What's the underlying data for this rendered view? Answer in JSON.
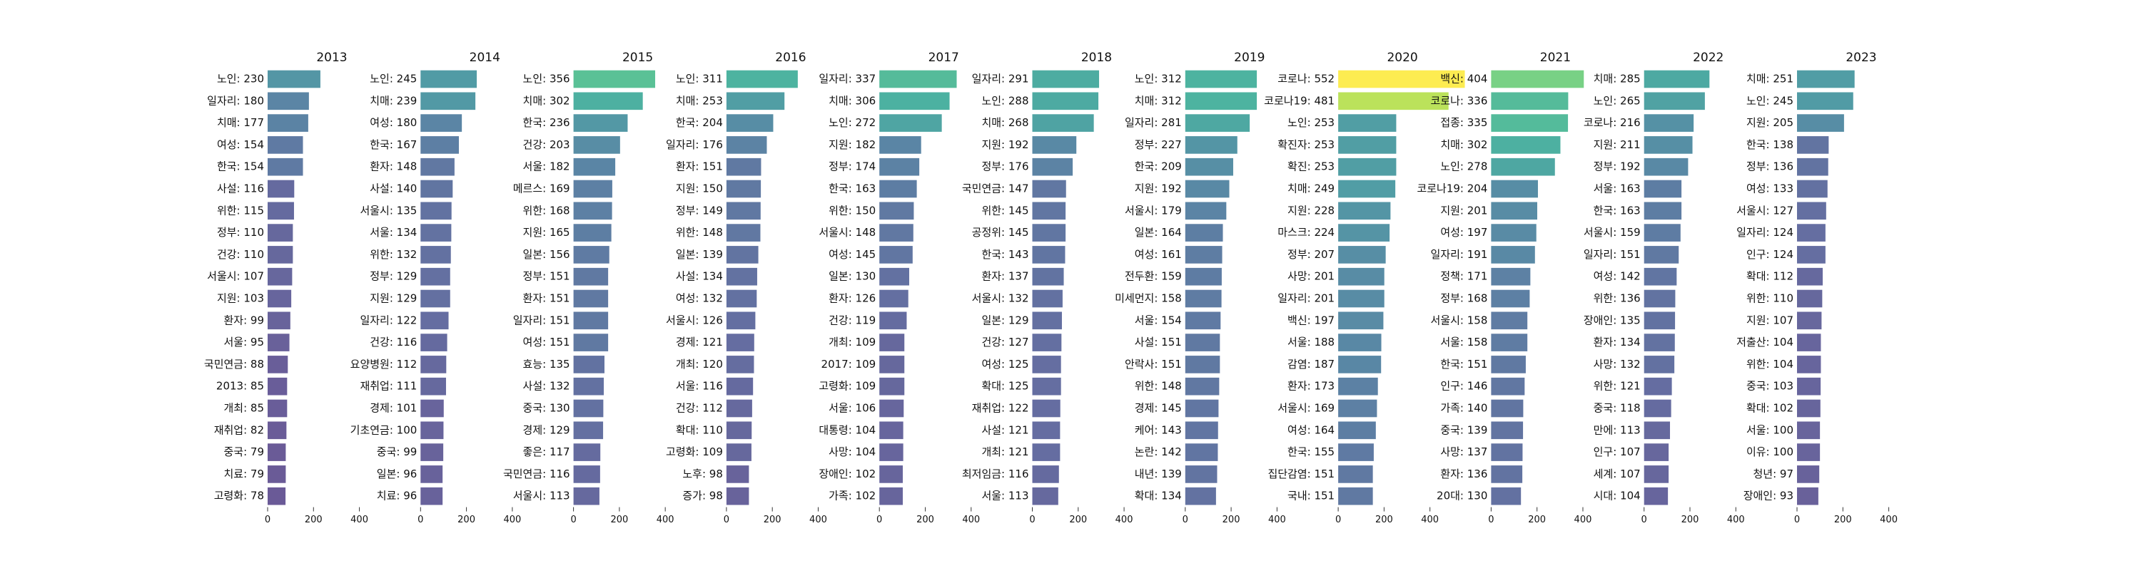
{
  "chart_data": [
    {
      "type": "bar",
      "horizontal": true,
      "title": "2013",
      "colormap": "viridis",
      "xlim": [
        0,
        560
      ],
      "xticks": [
        0,
        200,
        400
      ],
      "categories": [
        "노인: 230",
        "일자리: 180",
        "치매: 177",
        "여성: 154",
        "한국: 154",
        "사설: 116",
        "위한: 115",
        "정부: 110",
        "건강: 110",
        "서울시: 107",
        "지원: 103",
        "환자: 99",
        "서울: 95",
        "국민연금: 88",
        "2013: 85",
        "개최: 85",
        "재취업: 82",
        "중국: 79",
        "치료: 79",
        "고령화: 78"
      ],
      "values": [
        230,
        180,
        177,
        154,
        154,
        116,
        115,
        110,
        110,
        107,
        103,
        99,
        95,
        88,
        85,
        85,
        82,
        79,
        79,
        78
      ]
    },
    {
      "type": "bar",
      "horizontal": true,
      "title": "2014",
      "colormap": "viridis",
      "xlim": [
        0,
        560
      ],
      "xticks": [
        0,
        200,
        400
      ],
      "categories": [
        "노인: 245",
        "치매: 239",
        "여성: 180",
        "한국: 167",
        "환자: 148",
        "사설: 140",
        "서울시: 135",
        "서울: 134",
        "위한: 132",
        "정부: 129",
        "지원: 129",
        "일자리: 122",
        "건강: 116",
        "요양병원: 112",
        "재취업: 111",
        "경제: 101",
        "기초연금: 100",
        "중국: 99",
        "일본: 96",
        "치료: 96"
      ],
      "values": [
        245,
        239,
        180,
        167,
        148,
        140,
        135,
        134,
        132,
        129,
        129,
        122,
        116,
        112,
        111,
        101,
        100,
        99,
        96,
        96
      ]
    },
    {
      "type": "bar",
      "horizontal": true,
      "title": "2015",
      "colormap": "viridis",
      "xlim": [
        0,
        560
      ],
      "xticks": [
        0,
        200,
        400
      ],
      "categories": [
        "노인: 356",
        "치매: 302",
        "한국: 236",
        "건강: 203",
        "서울: 182",
        "메르스: 169",
        "위한: 168",
        "지원: 165",
        "일본: 156",
        "정부: 151",
        "환자: 151",
        "일자리: 151",
        "여성: 151",
        "효능: 135",
        "사설: 132",
        "중국: 130",
        "경제: 129",
        "좋은: 117",
        "국민연금: 116",
        "서울시: 113"
      ],
      "values": [
        356,
        302,
        236,
        203,
        182,
        169,
        168,
        165,
        156,
        151,
        151,
        151,
        151,
        135,
        132,
        130,
        129,
        117,
        116,
        113
      ]
    },
    {
      "type": "bar",
      "horizontal": true,
      "title": "2016",
      "colormap": "viridis",
      "xlim": [
        0,
        560
      ],
      "xticks": [
        0,
        200,
        400
      ],
      "categories": [
        "노인: 311",
        "치매: 253",
        "한국: 204",
        "일자리: 176",
        "환자: 151",
        "지원: 150",
        "정부: 149",
        "위한: 148",
        "일본: 139",
        "사설: 134",
        "여성: 132",
        "서울시: 126",
        "경제: 121",
        "개최: 120",
        "서울: 116",
        "건강: 112",
        "확대: 110",
        "고령화: 109",
        "노후: 98",
        "증가: 98"
      ],
      "values": [
        311,
        253,
        204,
        176,
        151,
        150,
        149,
        148,
        139,
        134,
        132,
        126,
        121,
        120,
        116,
        112,
        110,
        109,
        98,
        98
      ]
    },
    {
      "type": "bar",
      "horizontal": true,
      "title": "2017",
      "colormap": "viridis",
      "xlim": [
        0,
        560
      ],
      "xticks": [
        0,
        200,
        400
      ],
      "categories": [
        "일자리: 337",
        "치매: 306",
        "노인: 272",
        "지원: 182",
        "정부: 174",
        "한국: 163",
        "위한: 150",
        "서울시: 148",
        "여성: 145",
        "일본: 130",
        "환자: 126",
        "건강: 119",
        "개최: 109",
        "2017: 109",
        "고령화: 109",
        "서울: 106",
        "대통령: 104",
        "사망: 104",
        "장애인: 102",
        "가족: 102"
      ],
      "values": [
        337,
        306,
        272,
        182,
        174,
        163,
        150,
        148,
        145,
        130,
        126,
        119,
        109,
        109,
        109,
        106,
        104,
        104,
        102,
        102
      ]
    },
    {
      "type": "bar",
      "horizontal": true,
      "title": "2018",
      "colormap": "viridis",
      "xlim": [
        0,
        560
      ],
      "xticks": [
        0,
        200,
        400
      ],
      "categories": [
        "일자리: 291",
        "노인: 288",
        "치매: 268",
        "지원: 192",
        "정부: 176",
        "국민연금: 147",
        "위한: 145",
        "공정위: 145",
        "한국: 143",
        "환자: 137",
        "서울시: 132",
        "일본: 129",
        "건강: 127",
        "여성: 125",
        "확대: 125",
        "재취업: 122",
        "사설: 121",
        "개최: 121",
        "최저임금: 116",
        "서울: 113"
      ],
      "values": [
        291,
        288,
        268,
        192,
        176,
        147,
        145,
        145,
        143,
        137,
        132,
        129,
        127,
        125,
        125,
        122,
        121,
        121,
        116,
        113
      ]
    },
    {
      "type": "bar",
      "horizontal": true,
      "title": "2019",
      "colormap": "viridis",
      "xlim": [
        0,
        560
      ],
      "xticks": [
        0,
        200,
        400
      ],
      "categories": [
        "노인: 312",
        "치매: 312",
        "일자리: 281",
        "정부: 227",
        "한국: 209",
        "지원: 192",
        "서울시: 179",
        "일본: 164",
        "여성: 161",
        "전두환: 159",
        "미세먼지: 158",
        "서울: 154",
        "사설: 151",
        "안락사: 151",
        "위한: 148",
        "경제: 145",
        "케어: 143",
        "논란: 142",
        "내년: 139",
        "확대: 134"
      ],
      "values": [
        312,
        312,
        281,
        227,
        209,
        192,
        179,
        164,
        161,
        159,
        158,
        154,
        151,
        151,
        148,
        145,
        143,
        142,
        139,
        134
      ]
    },
    {
      "type": "bar",
      "horizontal": true,
      "title": "2020",
      "colormap": "viridis",
      "xlim": [
        0,
        560
      ],
      "xticks": [
        0,
        200,
        400
      ],
      "categories": [
        "코로나: 552",
        "코로나19: 481",
        "노인: 253",
        "확진자: 253",
        "확진: 253",
        "치매: 249",
        "지원: 228",
        "마스크: 224",
        "정부: 207",
        "사망: 201",
        "일자리: 201",
        "백신: 197",
        "서울: 188",
        "감염: 187",
        "환자: 173",
        "서울시: 169",
        "여성: 164",
        "한국: 155",
        "집단감염: 151",
        "국내: 151"
      ],
      "values": [
        552,
        481,
        253,
        253,
        253,
        249,
        228,
        224,
        207,
        201,
        201,
        197,
        188,
        187,
        173,
        169,
        164,
        155,
        151,
        151
      ]
    },
    {
      "type": "bar",
      "horizontal": true,
      "title": "2021",
      "colormap": "viridis",
      "xlim": [
        0,
        560
      ],
      "xticks": [
        0,
        200,
        400
      ],
      "categories": [
        "백신: 404",
        "코로나: 336",
        "접종: 335",
        "치매: 302",
        "노인: 278",
        "코로나19: 204",
        "지원: 201",
        "여성: 197",
        "일자리: 191",
        "정책: 171",
        "정부: 168",
        "서울시: 158",
        "서울: 158",
        "한국: 151",
        "인구: 146",
        "가족: 140",
        "중국: 139",
        "사망: 137",
        "환자: 136",
        "20대: 130"
      ],
      "values": [
        404,
        336,
        335,
        302,
        278,
        204,
        201,
        197,
        191,
        171,
        168,
        158,
        158,
        151,
        146,
        140,
        139,
        137,
        136,
        130
      ]
    },
    {
      "type": "bar",
      "horizontal": true,
      "title": "2022",
      "colormap": "viridis",
      "xlim": [
        0,
        560
      ],
      "xticks": [
        0,
        200,
        400
      ],
      "categories": [
        "치매: 285",
        "노인: 265",
        "코로나: 216",
        "지원: 211",
        "정부: 192",
        "서울: 163",
        "한국: 163",
        "서울시: 159",
        "일자리: 151",
        "여성: 142",
        "위한: 136",
        "장애인: 135",
        "환자: 134",
        "사망: 132",
        "위한: 121",
        "중국: 118",
        "만에: 113",
        "인구: 107",
        "세계: 107",
        "시대: 104"
      ],
      "values": [
        285,
        265,
        216,
        211,
        192,
        163,
        163,
        159,
        151,
        142,
        136,
        135,
        134,
        132,
        121,
        118,
        113,
        107,
        107,
        104
      ]
    },
    {
      "type": "bar",
      "horizontal": true,
      "title": "2023",
      "colormap": "viridis",
      "xlim": [
        0,
        560
      ],
      "xticks": [
        0,
        200,
        400
      ],
      "categories": [
        "치매: 251",
        "노인: 245",
        "지원: 205",
        "한국: 138",
        "정부: 136",
        "여성: 133",
        "서울시: 127",
        "일자리: 124",
        "인구: 124",
        "확대: 112",
        "위한: 110",
        "지원: 107",
        "저출산: 104",
        "위한: 104",
        "중국: 103",
        "확대: 102",
        "서울: 100",
        "이유: 100",
        "청년: 97",
        "장애인: 93"
      ],
      "values": [
        251,
        245,
        205,
        138,
        136,
        133,
        127,
        124,
        124,
        112,
        110,
        107,
        104,
        104,
        103,
        102,
        100,
        100,
        97,
        93
      ]
    }
  ]
}
